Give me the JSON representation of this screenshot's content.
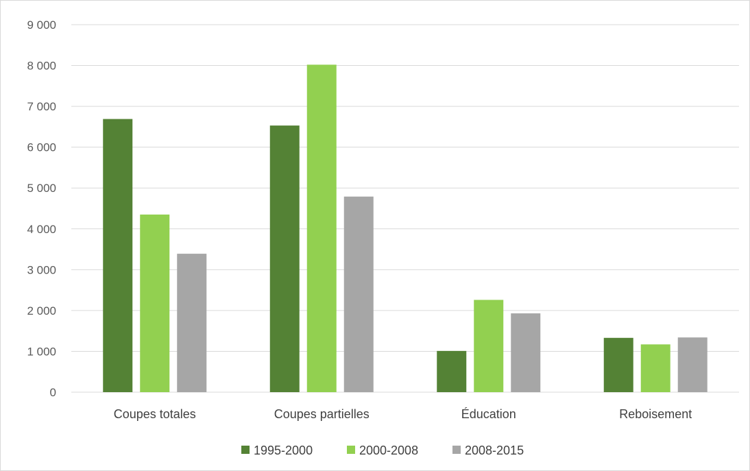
{
  "chart_data": {
    "type": "bar",
    "categories": [
      "Coupes totales",
      "Coupes partielles",
      "Éducation",
      "Reboisement"
    ],
    "series": [
      {
        "name": "1995-2000",
        "color": "#548235",
        "values": [
          6690,
          6530,
          1010,
          1330
        ]
      },
      {
        "name": "2000-2008",
        "color": "#92d050",
        "values": [
          4350,
          8020,
          2260,
          1170
        ]
      },
      {
        "name": "2008-2015",
        "color": "#a6a6a6",
        "values": [
          3390,
          4790,
          1930,
          1340
        ]
      }
    ],
    "y_ticks": [
      "0",
      "1 000",
      "2 000",
      "3 000",
      "4 000",
      "5 000",
      "6 000",
      "7 000",
      "8 000",
      "9 000"
    ],
    "ylim": [
      0,
      9000
    ],
    "grid": true,
    "legend_position": "bottom",
    "title": "",
    "xlabel": "",
    "ylabel": ""
  }
}
